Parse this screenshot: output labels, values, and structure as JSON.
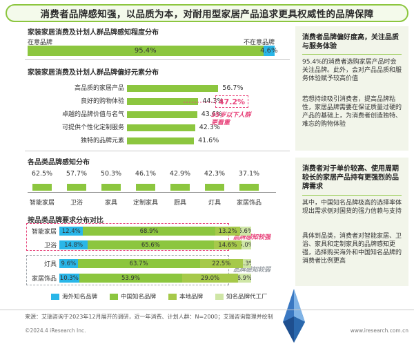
{
  "banner": {
    "title": "消费者品牌感知强，以品质为本，对耐用型家居产品追求更具权威性的品牌保障"
  },
  "colors": {
    "green": "#8cc63f",
    "blue": "#29b6e8",
    "light_green": "#cfe6a6",
    "olive": "#a6c94a",
    "pink": "#e8457c",
    "panel": "#f2f5ea"
  },
  "chart_data": [
    {
      "type": "bar",
      "title": "家装家居消费及计划人群品牌感知程度分布",
      "categories": [
        "在意品牌",
        "不在意品牌"
      ],
      "values": [
        95.4,
        4.6
      ],
      "labels": [
        "95.4%",
        "4.6%"
      ],
      "orientation": "horizontal-stacked"
    },
    {
      "type": "bar",
      "title": "家装家居消费及计划人群品牌偏好元素分布",
      "orientation": "horizontal",
      "categories": [
        "高品质的家居产品",
        "良好的购物体验",
        "卓越的品牌价值与名气",
        "可提供个性化定制服务",
        "独特的品牌元素"
      ],
      "values": [
        56.7,
        44.3,
        43.6,
        42.3,
        41.6
      ],
      "labels": [
        "56.7%",
        "44.3%",
        "43.6%",
        "42.3%",
        "41.6%"
      ],
      "annotation": "47.2%",
      "annotation_note": "35岁以下人群更看重"
    },
    {
      "type": "bar",
      "title": "各品类品牌感知分布",
      "categories": [
        "智能家居",
        "卫浴",
        "家具",
        "定制家具",
        "厨具",
        "灯具",
        "家居饰品"
      ],
      "values": [
        62.5,
        57.7,
        50.3,
        46.1,
        42.9,
        42.3,
        37.1
      ],
      "labels": [
        "62.5%",
        "57.7%",
        "50.3%",
        "46.1%",
        "42.9%",
        "42.3%",
        "37.1%"
      ]
    },
    {
      "type": "bar",
      "title": "按品类品牌要求分布对比",
      "orientation": "horizontal-stacked",
      "categories": [
        "智能家居",
        "卫浴",
        "灯具",
        "家居饰品"
      ],
      "series": [
        {
          "name": "海外知名品牌",
          "values": [
            12.4,
            14.8,
            9.6,
            10.3
          ],
          "labels": [
            "12.4%",
            "14.8%",
            "9.6%",
            "10.3%"
          ]
        },
        {
          "name": "中国知名品牌",
          "values": [
            68.9,
            65.6,
            63.7,
            53.9
          ],
          "labels": [
            "68.9%",
            "65.6%",
            "63.7%",
            "53.9%"
          ]
        },
        {
          "name": "本地品牌",
          "values": [
            13.2,
            14.6,
            22.5,
            29.0
          ],
          "labels": [
            "13.2%",
            "14.6%",
            "22.5%",
            "29.0%"
          ]
        },
        {
          "name": "知名品牌代工厂",
          "values": [
            5.6,
            5.0,
            4.3,
            6.9
          ],
          "labels": [
            "5.6%",
            "5.0%",
            "4.3%",
            "6.9%"
          ]
        }
      ],
      "group_notes": [
        "品牌感知较强",
        "品牌感知较弱"
      ]
    }
  ],
  "right_panel": {
    "block1": {
      "title": "消费者品牌偏好度高，关注品质与服务体验",
      "p1": "95.4%的消费者选购家居产品时会关注品牌。此外，会对产品品质和服务体验赋予较高价值",
      "p2": "若想持续吸引消费者，提高品牌粘性，家居品牌需要在保证质量过硬的产品的基础上，为消费者创造独特、难忘的购物体验"
    },
    "block2": {
      "title": "消费者对于单价较高、使用周期较长的家居产品持有更强烈的品牌需求",
      "p1": "其中，中国知名品牌极高的选择率体现出需求侧对国货的强力信赖与支持",
      "p2": "具体到品类，消费者对智能家居、卫浴、家具和定制家具的品牌感知更强，选择购买海外和中国知名品牌的消费者比例更高"
    }
  },
  "footer": {
    "source": "来源：艾瑞咨询于2023年12月展开的调研，近一年消费、计划人群：N=2000；艾瑞咨询整理并绘制",
    "copyright": "©2024.4 iResearch Inc.",
    "url": "www.iresearch.com.cn"
  }
}
